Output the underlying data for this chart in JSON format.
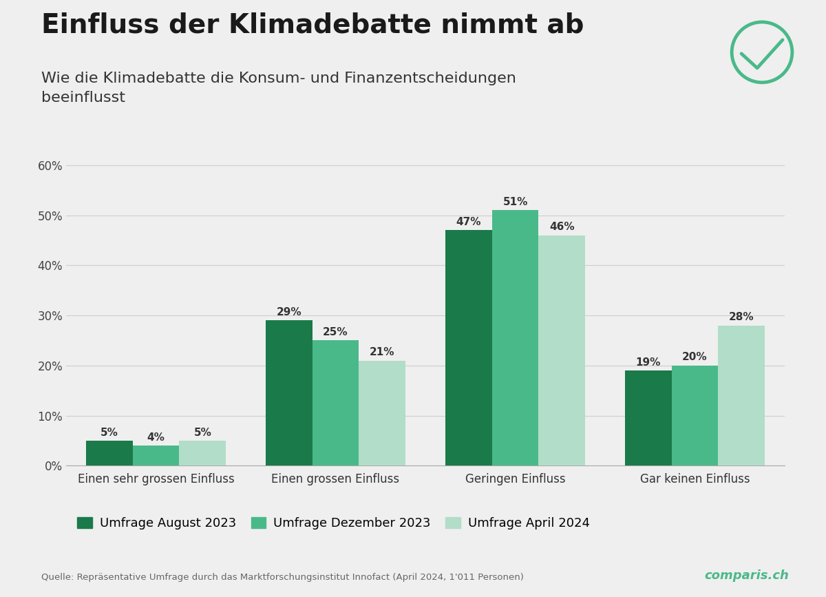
{
  "title": "Einfluss der Klimadebatte nimmt ab",
  "subtitle": "Wie die Klimadebatte die Konsum- und Finanzentscheidungen\nbeeinflusst",
  "categories": [
    "Einen sehr grossen Einfluss",
    "Einen grossen Einfluss",
    "Geringen Einfluss",
    "Gar keinen Einfluss"
  ],
  "series": [
    {
      "label": "Umfrage August 2023",
      "color": "#1a7a4a",
      "values": [
        5,
        29,
        47,
        19
      ]
    },
    {
      "label": "Umfrage Dezember 2023",
      "color": "#4ab98a",
      "values": [
        4,
        25,
        51,
        20
      ]
    },
    {
      "label": "Umfrage April 2024",
      "color": "#b2ddc8",
      "values": [
        5,
        21,
        46,
        28
      ]
    }
  ],
  "ylim": [
    0,
    62
  ],
  "yticks": [
    0,
    10,
    20,
    30,
    40,
    50,
    60
  ],
  "background_color": "#efefef",
  "plot_bg_color": "#efefef",
  "grid_color": "#d0d0d0",
  "source_text": "Quelle: Repräsentative Umfrage durch das Marktforschungsinstitut Innofact (April 2024, 1'011 Personen)",
  "comparis_text": "comparis.ch",
  "comparis_color": "#4ab98a",
  "bar_label_fontsize": 11,
  "bar_label_color": "#333333",
  "axis_label_fontsize": 12,
  "ytick_fontsize": 12
}
